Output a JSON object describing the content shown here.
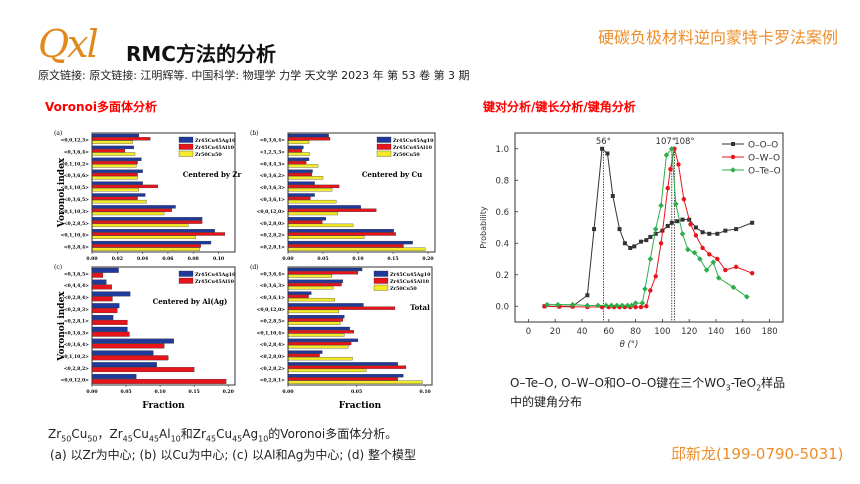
{
  "header": {
    "logo": "Qxl",
    "title": "RMC方法的分析",
    "top_right": "硬碳负极材料逆向蒙特卡罗法案例",
    "source": "原文链接:  原文链接:  江明辉等. 中国科学: 物理学 力学 天文学 2023 年 第 53 卷 第 3 期"
  },
  "sections": {
    "voronoi": "Voronoi多面体分析",
    "bond": "键对分析/键长分析/键角分析"
  },
  "captions": {
    "left_line1": {
      "a": "Zr",
      "a_sub": "50",
      "b": "Cu",
      "b_sub": "50",
      "c": "，Zr",
      "c_sub": "45",
      "d": "Cu",
      "d_sub": "45",
      "e": "Al",
      "e_sub": "10",
      "f": "和Zr",
      "f_sub": "45",
      "g": "Cu",
      "g_sub": "45",
      "h": "Ag",
      "h_sub": "10",
      "i": "的Voronoi多面体分析。"
    },
    "left_line2": "(a) 以Zr为中心;  (b) 以Cu为中心;  (c) 以Al和Ag为中心;  (d) 整个模型",
    "right_line1_a": "O–Te–O, O–W–O和O–O–O键在三个WO",
    "right_line1_sub1": "3",
    "right_line1_b": "-TeO",
    "right_line1_sub2": "2",
    "right_line1_c": "样品",
    "right_line2": "中的键角分布"
  },
  "footer": {
    "contact": "邱新龙(199-0790-5031)"
  },
  "colors": {
    "orange": "#ee8e2a",
    "red_heading": "#ff0000",
    "ag": "#1f3a9a",
    "al": "#e8141c",
    "cu": "#f4ea2a"
  },
  "chart_data": [
    {
      "type": "bar",
      "panel": "(a)",
      "title": "Centered by Zr",
      "ylabel": "Voronoi index",
      "xlabel": "",
      "xlim": [
        0,
        0.113
      ],
      "xticks": [
        "0.00",
        "0.02",
        "0.04",
        "0.06",
        "0.08",
        "0.10"
      ],
      "categories": [
        "<0,0,12,3>",
        "<0,3,6,4>",
        "<0,1,10,2>",
        "<0,3,6,6>",
        "<0,1,10,5>",
        "<0,3,6,5>",
        "<0,1,10,3>",
        "<0,2,8,5>",
        "<0,1,10,4>",
        "<0,2,8,4>"
      ],
      "series": [
        {
          "name": "Zr45Cu45Ag10",
          "color": "#1f3a9a",
          "values": [
            0.037,
            0.033,
            0.039,
            0.04,
            0.04,
            0.042,
            0.066,
            0.087,
            0.097,
            0.094
          ]
        },
        {
          "name": "Zr45Cu45Al10",
          "color": "#e8141c",
          "values": [
            0.046,
            0.026,
            0.036,
            0.036,
            0.052,
            0.036,
            0.063,
            0.087,
            0.105,
            0.086
          ]
        },
        {
          "name": "Zr50Cu50",
          "color": "#f4ea2a",
          "values": [
            0.032,
            0.034,
            0.035,
            0.036,
            0.037,
            0.043,
            0.057,
            0.076,
            0.082,
            0.085
          ]
        }
      ]
    },
    {
      "type": "bar",
      "panel": "(b)",
      "title": "Centered by Cu",
      "ylabel": "",
      "xlabel": "",
      "xlim": [
        0,
        0.21
      ],
      "xticks": [
        "0.00",
        "0.05",
        "0.10",
        "0.15",
        "0.20"
      ],
      "categories": [
        "<0,3,6,4>",
        "<1,2,5,3>",
        "<0,4,4,3>",
        "<0,3,6,2>",
        "<0,3,6,3>",
        "<0,3,6,1>",
        "<0,0,12,0>",
        "<0,2,8,0>",
        "<0,2,8,2>",
        "<0,2,8,1>"
      ],
      "series": [
        {
          "name": "Zr45Cu45Ag10",
          "color": "#1f3a9a",
          "values": [
            0.058,
            0.022,
            0.03,
            0.035,
            0.038,
            0.038,
            0.104,
            0.054,
            0.151,
            0.178
          ]
        },
        {
          "name": "Zr45Cu45Al10",
          "color": "#e8141c",
          "values": [
            0.06,
            0.02,
            0.026,
            0.034,
            0.073,
            0.032,
            0.126,
            0.049,
            0.154,
            0.165
          ]
        },
        {
          "name": "Zr50Cu50",
          "color": "#f4ea2a",
          "values": [
            0.03,
            0.031,
            0.043,
            0.05,
            0.063,
            0.069,
            0.071,
            0.093,
            0.109,
            0.196
          ]
        }
      ]
    },
    {
      "type": "bar",
      "panel": "(c)",
      "title": "Centered by Al(Ag)",
      "ylabel": "Voronoi index",
      "xlabel": "Fraction",
      "xlim": [
        0,
        0.21
      ],
      "xticks": [
        "0.00",
        "0.05",
        "0.10",
        "0.15",
        "0.20"
      ],
      "categories": [
        "<0,3,6,5>",
        "<0,4,4,4>",
        "<0,2,8,4>",
        "<0,2,8,3>",
        "<0,2,8,1>",
        "<0,3,6,3>",
        "<0,3,6,4>",
        "<0,1,10,2>",
        "<0,2,8,2>",
        "<0,0,12,0>"
      ],
      "series": [
        {
          "name": "Zr45Cu45Ag10",
          "color": "#1f3a9a",
          "values": [
            0.039,
            0.021,
            0.056,
            0.04,
            0.031,
            0.052,
            0.12,
            0.09,
            0.095,
            0.065
          ]
        },
        {
          "name": "Zr45Cu45Al10",
          "color": "#e8141c",
          "values": [
            0.016,
            0.029,
            0.03,
            0.037,
            0.052,
            0.055,
            0.106,
            0.112,
            0.15,
            0.197
          ]
        }
      ]
    },
    {
      "type": "bar",
      "panel": "(d)",
      "title": "Total",
      "ylabel": "",
      "xlabel": "Fraction",
      "xlim": [
        0,
        0.105
      ],
      "xticks": [
        "0.00",
        "0.05",
        "0.10"
      ],
      "categories": [
        "<0,3,6,4>",
        "<0,3,6,3>",
        "<0,3,6,1>",
        "<0,0,12,0>",
        "<0,2,8,5>",
        "<0,1,10,4>",
        "<0,2,8,4>",
        "<0,2,8,0>",
        "<0,2,8,2>",
        "<0,2,8,1>"
      ],
      "series": [
        {
          "name": "Zr45Cu45Ag10",
          "color": "#1f3a9a",
          "values": [
            0.054,
            0.04,
            0.017,
            0.055,
            0.041,
            0.045,
            0.051,
            0.025,
            0.08,
            0.084
          ]
        },
        {
          "name": "Zr45Cu45Al10",
          "color": "#e8141c",
          "values": [
            0.051,
            0.039,
            0.015,
            0.078,
            0.04,
            0.048,
            0.046,
            0.023,
            0.086,
            0.08
          ]
        },
        {
          "name": "Zr50Cu50",
          "color": "#f4ea2a",
          "values": [
            0.032,
            0.033,
            0.034,
            0.037,
            0.038,
            0.041,
            0.044,
            0.047,
            0.057,
            0.098
          ]
        }
      ]
    },
    {
      "type": "line",
      "title": "",
      "xlabel": "θ (°)",
      "ylabel": "Probability",
      "xlim": [
        -10,
        190
      ],
      "ylim": [
        -0.1,
        1.1
      ],
      "grid": false,
      "legend": "top-right",
      "xticks": [
        0,
        20,
        40,
        60,
        80,
        100,
        120,
        140,
        160,
        180
      ],
      "yticks": [
        "0.0",
        "0.2",
        "0.4",
        "0.6",
        "0.8",
        "1.0"
      ],
      "annotations": [
        {
          "x": 56,
          "text": "56°"
        },
        {
          "x": 107,
          "text": "107°"
        },
        {
          "x": 109,
          "text": "108°"
        }
      ],
      "series": [
        {
          "name": "O–O–O",
          "color": "#333333",
          "marker": "square",
          "x": [
            12,
            23,
            33,
            44,
            49,
            55,
            59,
            63,
            68,
            72,
            76,
            79,
            84,
            88,
            91,
            95,
            100,
            104,
            107,
            111,
            115,
            120,
            125,
            130,
            135,
            141,
            147,
            155,
            167
          ],
          "y": [
            0,
            0,
            0,
            0.07,
            0.49,
            1.0,
            0.97,
            0.7,
            0.49,
            0.4,
            0.37,
            0.38,
            0.41,
            0.42,
            0.44,
            0.46,
            0.48,
            0.51,
            0.53,
            0.54,
            0.55,
            0.55,
            0.5,
            0.47,
            0.46,
            0.46,
            0.48,
            0.49,
            0.53
          ]
        },
        {
          "name": "O–W–O",
          "color": "#e8141c",
          "marker": "circle",
          "x": [
            12,
            23,
            33,
            44,
            55,
            60,
            64,
            68,
            72,
            76,
            80,
            84,
            88,
            91,
            95,
            99,
            104,
            106,
            109,
            112,
            116,
            121,
            125,
            130,
            135,
            141,
            147,
            155,
            167
          ],
          "y": [
            0,
            -0.003,
            -0.003,
            -0.005,
            -0.005,
            -0.005,
            -0.005,
            -0.005,
            -0.005,
            -0.005,
            -0.005,
            -0.005,
            0,
            0.1,
            0.19,
            0.4,
            0.75,
            0.87,
            1.0,
            0.9,
            0.68,
            0.52,
            0.45,
            0.37,
            0.33,
            0.3,
            0.23,
            0.25,
            0.21
          ]
        },
        {
          "name": "O–Te–O",
          "color": "#2eae4a",
          "marker": "diamond",
          "x": [
            14,
            22,
            33,
            44,
            52,
            58,
            62,
            66,
            70,
            74,
            77,
            80,
            85,
            87,
            91,
            95,
            99,
            103,
            107,
            110,
            115,
            119,
            124,
            128,
            133,
            138,
            142,
            153,
            163
          ],
          "y": [
            0.01,
            0.01,
            0.01,
            0.005,
            0.005,
            0.005,
            0.005,
            0.005,
            0.005,
            0.005,
            0.005,
            0.02,
            0.02,
            0.11,
            0.3,
            0.49,
            0.64,
            0.96,
            1.0,
            0.65,
            0.46,
            0.36,
            0.34,
            0.3,
            0.23,
            0.28,
            0.18,
            0.12,
            0.06
          ]
        }
      ]
    }
  ]
}
